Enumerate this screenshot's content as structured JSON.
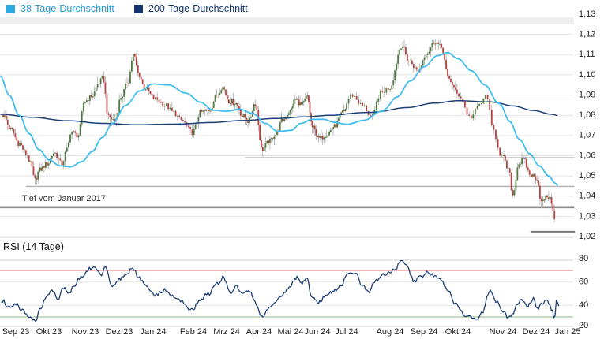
{
  "legend": [
    {
      "label": "38-Tage-Durchschnitt",
      "swatch_color": "#29ABE2",
      "text_color": "#1E9CD9"
    },
    {
      "label": "200-Tage-Durchschnitt",
      "swatch_color": "#14366F",
      "text_color": "#14366F"
    }
  ],
  "price_panel": {
    "annotation": "Tief vom Januar 2017",
    "y_axis_labels": [
      "1,13",
      "1,12",
      "1,11",
      "1,10",
      "1,09",
      "1,08",
      "1,07",
      "1,06",
      "1,05",
      "1,04",
      "1,03",
      "1,02"
    ]
  },
  "rsi_panel": {
    "title": "RSI (14 Tage)",
    "y_axis_labels": [
      "80",
      "60",
      "40",
      "20"
    ]
  },
  "x_axis_months": [
    "Sep 23",
    "Okt 23",
    "Nov 23",
    "Dez 23",
    "Jan 24",
    "Feb 24",
    "Mrz 24",
    "Apr 24",
    "Mai 24",
    "Jun 24",
    "Jul 24",
    "Aug 24",
    "Sep 24",
    "Okt 24",
    "Nov 24",
    "Dez 24",
    "Jan 25"
  ],
  "chart_data": {
    "type": "candlestick",
    "y_range": [
      1.02,
      1.13
    ],
    "x_range_months": [
      "Sep 23",
      "Jan 25"
    ],
    "grid": true,
    "legend_position": "top-left",
    "price_keyframes": [
      [
        0.12,
        1.08
      ],
      [
        0.35,
        1.073
      ],
      [
        0.6,
        1.066
      ],
      [
        0.82,
        1.061
      ],
      [
        0.95,
        1.056
      ],
      [
        1.07,
        1.0478
      ],
      [
        1.22,
        1.053
      ],
      [
        1.45,
        1.056
      ],
      [
        1.65,
        1.0615
      ],
      [
        1.85,
        1.056
      ],
      [
        2.0,
        1.063
      ],
      [
        2.1,
        1.072
      ],
      [
        2.3,
        1.07
      ],
      [
        2.48,
        1.087
      ],
      [
        2.7,
        1.0895
      ],
      [
        2.9,
        1.096
      ],
      [
        3.02,
        1.0985
      ],
      [
        3.18,
        1.079
      ],
      [
        3.38,
        1.0775
      ],
      [
        3.55,
        1.089
      ],
      [
        3.75,
        1.096
      ],
      [
        3.92,
        1.11
      ],
      [
        4.08,
        1.1
      ],
      [
        4.25,
        1.0935
      ],
      [
        4.55,
        1.088
      ],
      [
        4.8,
        1.085
      ],
      [
        5.0,
        1.0815
      ],
      [
        5.2,
        1.0775
      ],
      [
        5.47,
        1.0715
      ],
      [
        5.72,
        1.0815
      ],
      [
        5.98,
        1.0825
      ],
      [
        6.22,
        1.0905
      ],
      [
        6.37,
        1.094
      ],
      [
        6.58,
        1.087
      ],
      [
        6.78,
        1.086
      ],
      [
        7.0,
        1.0795
      ],
      [
        7.18,
        1.077
      ],
      [
        7.38,
        1.086
      ],
      [
        7.6,
        1.063
      ],
      [
        7.82,
        1.067
      ],
      [
        8.02,
        1.0705
      ],
      [
        8.25,
        1.0775
      ],
      [
        8.48,
        1.082
      ],
      [
        8.68,
        1.088
      ],
      [
        8.92,
        1.085
      ],
      [
        9.12,
        1.089
      ],
      [
        9.32,
        1.074
      ],
      [
        9.57,
        1.0685
      ],
      [
        9.82,
        1.0705
      ],
      [
        10.08,
        1.0745
      ],
      [
        10.38,
        1.0815
      ],
      [
        10.62,
        1.09
      ],
      [
        10.88,
        1.0845
      ],
      [
        11.08,
        1.079
      ],
      [
        11.28,
        1.091
      ],
      [
        11.48,
        1.0935
      ],
      [
        11.85,
        1.1145
      ],
      [
        12.05,
        1.107
      ],
      [
        12.32,
        1.102
      ],
      [
        12.58,
        1.111
      ],
      [
        12.82,
        1.1165
      ],
      [
        13.02,
        1.1135
      ],
      [
        13.22,
        1.098
      ],
      [
        13.52,
        1.09
      ],
      [
        13.77,
        1.079
      ],
      [
        14.02,
        1.086
      ],
      [
        14.14,
        1.09
      ],
      [
        14.27,
        1.073
      ],
      [
        14.47,
        1.06
      ],
      [
        14.67,
        1.053
      ],
      [
        14.8,
        1.0405
      ],
      [
        14.97,
        1.056
      ],
      [
        15.12,
        1.058
      ],
      [
        15.32,
        1.0505
      ],
      [
        15.52,
        1.049
      ],
      [
        15.67,
        1.037
      ],
      [
        15.87,
        1.04
      ],
      [
        16.0,
        1.037
      ],
      [
        16.08,
        1.028
      ],
      [
        16.16,
        1.032
      ]
    ],
    "ma38_keyframes": [
      [
        0.03,
        1.0995
      ],
      [
        0.3,
        1.09
      ],
      [
        0.6,
        1.08
      ],
      [
        0.9,
        1.071
      ],
      [
        1.2,
        1.063
      ],
      [
        1.5,
        1.058
      ],
      [
        1.8,
        1.055
      ],
      [
        2.1,
        1.0545
      ],
      [
        2.4,
        1.057
      ],
      [
        2.7,
        1.062
      ],
      [
        3.0,
        1.069
      ],
      [
        3.3,
        1.076
      ],
      [
        3.7,
        1.085
      ],
      [
        4.1,
        1.092
      ],
      [
        4.5,
        1.0955
      ],
      [
        4.9,
        1.095
      ],
      [
        5.3,
        1.091
      ],
      [
        5.7,
        1.0865
      ],
      [
        6.1,
        1.0825
      ],
      [
        6.5,
        1.082
      ],
      [
        6.9,
        1.083
      ],
      [
        7.3,
        1.081
      ],
      [
        7.7,
        1.076
      ],
      [
        8.1,
        1.072
      ],
      [
        8.5,
        1.0725
      ],
      [
        8.9,
        1.076
      ],
      [
        9.3,
        1.078
      ],
      [
        9.7,
        1.078
      ],
      [
        10.1,
        1.0765
      ],
      [
        10.5,
        1.0755
      ],
      [
        10.9,
        1.0775
      ],
      [
        11.3,
        1.082
      ],
      [
        11.7,
        1.089
      ],
      [
        12.1,
        1.097
      ],
      [
        12.5,
        1.104
      ],
      [
        12.9,
        1.1095
      ],
      [
        13.2,
        1.111
      ],
      [
        13.5,
        1.108
      ],
      [
        13.8,
        1.102
      ],
      [
        14.1,
        1.095
      ],
      [
        14.4,
        1.086
      ],
      [
        14.7,
        1.077
      ],
      [
        15.0,
        1.068
      ],
      [
        15.3,
        1.061
      ],
      [
        15.6,
        1.055
      ],
      [
        15.9,
        1.05
      ],
      [
        16.1,
        1.0465
      ],
      [
        16.2,
        1.045
      ]
    ],
    "ma200_keyframes": [
      [
        0.03,
        1.0805
      ],
      [
        1,
        1.079
      ],
      [
        2,
        1.0773
      ],
      [
        3,
        1.076
      ],
      [
        4,
        1.0753
      ],
      [
        5,
        1.0756
      ],
      [
        6,
        1.0764
      ],
      [
        7,
        1.0774
      ],
      [
        8,
        1.0784
      ],
      [
        9,
        1.0792
      ],
      [
        10,
        1.08
      ],
      [
        11,
        1.0814
      ],
      [
        12,
        1.0838
      ],
      [
        12.8,
        1.086
      ],
      [
        13.5,
        1.0872
      ],
      [
        14.2,
        1.0866
      ],
      [
        14.8,
        1.0846
      ],
      [
        15.4,
        1.0824
      ],
      [
        16.0,
        1.0805
      ],
      [
        16.2,
        1.0798
      ]
    ],
    "rsi_keyframes": [
      [
        0.1,
        44
      ],
      [
        0.3,
        38
      ],
      [
        0.5,
        41
      ],
      [
        0.7,
        36
      ],
      [
        0.9,
        30
      ],
      [
        1.08,
        26
      ],
      [
        1.25,
        38
      ],
      [
        1.45,
        48
      ],
      [
        1.6,
        52
      ],
      [
        1.75,
        46
      ],
      [
        1.9,
        55
      ],
      [
        2.05,
        50
      ],
      [
        2.2,
        58
      ],
      [
        2.4,
        65
      ],
      [
        2.6,
        71
      ],
      [
        2.78,
        73
      ],
      [
        2.95,
        66
      ],
      [
        3.1,
        72
      ],
      [
        3.3,
        56
      ],
      [
        3.5,
        62
      ],
      [
        3.7,
        66
      ],
      [
        3.9,
        72
      ],
      [
        4.1,
        63
      ],
      [
        4.3,
        56
      ],
      [
        4.55,
        49
      ],
      [
        4.8,
        53
      ],
      [
        5.0,
        47
      ],
      [
        5.2,
        44
      ],
      [
        5.45,
        36
      ],
      [
        5.7,
        45
      ],
      [
        5.95,
        50
      ],
      [
        6.2,
        58
      ],
      [
        6.4,
        64
      ],
      [
        6.6,
        51
      ],
      [
        6.8,
        56
      ],
      [
        7.0,
        49
      ],
      [
        7.2,
        53
      ],
      [
        7.4,
        42
      ],
      [
        7.6,
        30
      ],
      [
        7.8,
        38
      ],
      [
        8.0,
        42
      ],
      [
        8.2,
        48
      ],
      [
        8.45,
        55
      ],
      [
        8.7,
        64
      ],
      [
        8.9,
        59
      ],
      [
        9.1,
        63
      ],
      [
        9.3,
        46
      ],
      [
        9.55,
        43
      ],
      [
        9.8,
        48
      ],
      [
        10.05,
        52
      ],
      [
        10.3,
        57
      ],
      [
        10.55,
        66
      ],
      [
        10.7,
        69
      ],
      [
        10.85,
        57
      ],
      [
        11.0,
        52
      ],
      [
        11.2,
        63
      ],
      [
        11.45,
        68
      ],
      [
        11.65,
        72
      ],
      [
        11.85,
        78
      ],
      [
        12.0,
        74
      ],
      [
        12.2,
        61
      ],
      [
        12.4,
        64
      ],
      [
        12.6,
        68
      ],
      [
        12.8,
        66
      ],
      [
        13.0,
        62
      ],
      [
        13.2,
        52
      ],
      [
        13.45,
        41
      ],
      [
        13.7,
        31
      ],
      [
        13.9,
        27
      ],
      [
        14.05,
        34
      ],
      [
        14.2,
        52
      ],
      [
        14.35,
        44
      ],
      [
        14.5,
        35
      ],
      [
        14.65,
        29
      ],
      [
        14.8,
        33
      ],
      [
        14.95,
        42
      ],
      [
        15.1,
        45
      ],
      [
        15.25,
        39
      ],
      [
        15.4,
        46
      ],
      [
        15.55,
        38
      ],
      [
        15.7,
        42
      ],
      [
        15.85,
        44
      ],
      [
        16.0,
        36
      ],
      [
        16.08,
        28
      ],
      [
        16.15,
        44
      ],
      [
        16.22,
        40
      ]
    ],
    "support_lines": [
      {
        "value": 1.059,
        "from_month": 7.06,
        "to_month": 16.7,
        "weight": "thin"
      },
      {
        "value": 1.0448,
        "from_month": 0.81,
        "to_month": 16.7,
        "weight": "thin"
      },
      {
        "value": 1.0345,
        "from_month": -0.6,
        "to_month": 16.7,
        "weight": "thick",
        "label": "Tief vom Januar 2017"
      },
      {
        "value": 1.0224,
        "from_month": 15.33,
        "to_month": 16.72,
        "weight": "medium"
      }
    ],
    "rsi_levels": {
      "overbought": 70,
      "oversold": 30
    },
    "colors": {
      "up": "#517A3E",
      "down": "#B4423E",
      "wick": "#A0A0A0",
      "ma38": "#3FBDF0",
      "ma200": "#1C3E74",
      "rsi": "#1C3E74",
      "grid": "#E4E4E4",
      "support": "#B0B0B0",
      "support_major": "#8A8A8A",
      "overbought_line": "#DD8F8F",
      "oversold_line": "#A3C89B",
      "axis_text": "#222222",
      "top_band": "#EFEFEF",
      "panel_border": "#CFCFCF"
    }
  }
}
